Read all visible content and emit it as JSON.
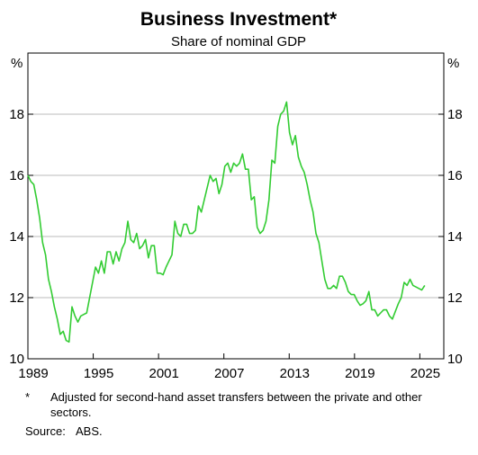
{
  "chart_data": {
    "type": "line",
    "title": "Business Investment*",
    "subtitle": "Share of nominal GDP",
    "y_label": "%",
    "footnote_marker": "*",
    "footnote": "Adjusted for second-hand asset transfers between the private and other sectors.",
    "source_label": "Source:",
    "source": "ABS.",
    "color": "#33cc33",
    "grid": true,
    "xlim": [
      1989,
      2027.2
    ],
    "xticks": [
      1989,
      1995,
      2001,
      2007,
      2013,
      2019,
      2025
    ],
    "ylim": [
      10,
      20
    ],
    "yticks": [
      10,
      12,
      14,
      16,
      18
    ],
    "x": [
      1989,
      1989.27,
      1989.54,
      1989.81,
      1990.08,
      1990.35,
      1990.62,
      1990.89,
      1991.16,
      1991.43,
      1991.7,
      1991.97,
      1992.24,
      1992.51,
      1992.78,
      1993.05,
      1993.32,
      1993.59,
      1993.86,
      1994.13,
      1994.4,
      1994.67,
      1994.94,
      1995.21,
      1995.48,
      1995.75,
      1996.02,
      1996.29,
      1996.56,
      1996.83,
      1997.1,
      1997.37,
      1997.64,
      1997.91,
      1998.18,
      1998.45,
      1998.72,
      1998.99,
      1999.26,
      1999.53,
      1999.8,
      2000.07,
      2000.34,
      2000.61,
      2000.88,
      2001.15,
      2001.42,
      2001.69,
      2001.96,
      2002.23,
      2002.5,
      2002.77,
      2003.04,
      2003.31,
      2003.58,
      2003.85,
      2004.12,
      2004.39,
      2004.66,
      2004.93,
      2005.2,
      2005.47,
      2005.74,
      2006.01,
      2006.28,
      2006.55,
      2006.82,
      2007.09,
      2007.36,
      2007.63,
      2007.9,
      2008.17,
      2008.44,
      2008.71,
      2008.98,
      2009.25,
      2009.52,
      2009.79,
      2010.06,
      2010.33,
      2010.6,
      2010.87,
      2011.14,
      2011.41,
      2011.68,
      2011.95,
      2012.22,
      2012.49,
      2012.76,
      2013.03,
      2013.3,
      2013.57,
      2013.84,
      2014.11,
      2014.38,
      2014.65,
      2014.92,
      2015.19,
      2015.46,
      2015.73,
      2016,
      2016.27,
      2016.54,
      2016.81,
      2017.08,
      2017.35,
      2017.62,
      2017.89,
      2018.16,
      2018.43,
      2018.7,
      2018.97,
      2019.24,
      2019.51,
      2019.78,
      2020.05,
      2020.32,
      2020.59,
      2020.86,
      2021.13,
      2021.4,
      2021.67,
      2021.94,
      2022.21,
      2022.48,
      2022.75,
      2023.02,
      2023.29,
      2023.56,
      2023.83,
      2024.1,
      2024.37,
      2024.64,
      2024.91,
      2025.18,
      2025.45
    ],
    "values": [
      16.0,
      15.8,
      15.7,
      15.2,
      14.6,
      13.8,
      13.4,
      12.6,
      12.2,
      11.7,
      11.3,
      10.8,
      10.9,
      10.6,
      10.55,
      11.7,
      11.4,
      11.2,
      11.4,
      11.45,
      11.5,
      12.0,
      12.5,
      13.0,
      12.8,
      13.2,
      12.8,
      13.5,
      13.5,
      13.1,
      13.5,
      13.2,
      13.6,
      13.8,
      14.5,
      13.9,
      13.8,
      14.1,
      13.6,
      13.7,
      13.9,
      13.3,
      13.7,
      13.7,
      12.8,
      12.8,
      12.75,
      13.0,
      13.2,
      13.4,
      14.5,
      14.1,
      14.0,
      14.4,
      14.4,
      14.1,
      14.1,
      14.2,
      15.0,
      14.8,
      15.2,
      15.6,
      16.0,
      15.8,
      15.9,
      15.4,
      15.7,
      16.3,
      16.4,
      16.1,
      16.4,
      16.3,
      16.4,
      16.7,
      16.2,
      16.2,
      15.2,
      15.3,
      14.3,
      14.1,
      14.2,
      14.5,
      15.2,
      16.5,
      16.4,
      17.6,
      18.0,
      18.1,
      18.4,
      17.4,
      17.0,
      17.3,
      16.6,
      16.3,
      16.1,
      15.7,
      15.2,
      14.8,
      14.1,
      13.8,
      13.2,
      12.6,
      12.3,
      12.3,
      12.4,
      12.3,
      12.7,
      12.7,
      12.5,
      12.2,
      12.1,
      12.1,
      11.9,
      11.75,
      11.8,
      11.9,
      12.2,
      11.6,
      11.6,
      11.4,
      11.5,
      11.6,
      11.6,
      11.4,
      11.3,
      11.55,
      11.8,
      12.0,
      12.5,
      12.4,
      12.6,
      12.4,
      12.35,
      12.3,
      12.25,
      12.4
    ]
  }
}
